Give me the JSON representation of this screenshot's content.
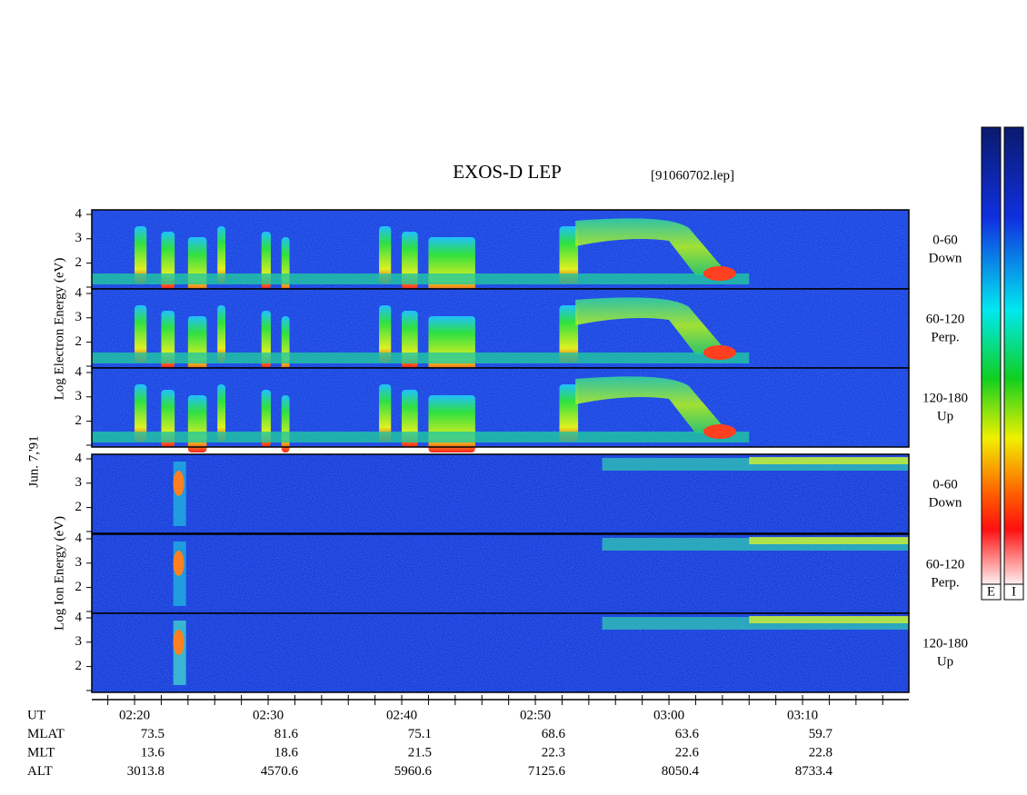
{
  "title": "EXOS-D LEP",
  "file": "[91060702.lep]",
  "date": "Jun. 7,'91",
  "electron_axis_label": "Log  Electron  Energy  (eV)",
  "ion_axis_label": "Log  Ion  Energy  (eV)",
  "energy_ticks": [
    2,
    3,
    4
  ],
  "panels": [
    {
      "pitch": "0-60",
      "direction": "Down"
    },
    {
      "pitch": "60-120",
      "direction": "Perp."
    },
    {
      "pitch": "120-180",
      "direction": "Up"
    },
    {
      "pitch": "0-60",
      "direction": "Down"
    },
    {
      "pitch": "60-120",
      "direction": "Perp."
    },
    {
      "pitch": "120-180",
      "direction": "Up"
    }
  ],
  "colorbar_labels": [
    "E",
    "I"
  ],
  "rows": [
    {
      "label": "UT",
      "values": [
        "02:20",
        "02:30",
        "02:40",
        "02:50",
        "03:00",
        "03:10"
      ]
    },
    {
      "label": "MLAT",
      "values": [
        "73.5",
        "81.6",
        "75.1",
        "68.6",
        "63.6",
        "59.7"
      ]
    },
    {
      "label": "MLT",
      "values": [
        "13.6",
        "18.6",
        "21.5",
        "22.3",
        "22.6",
        "22.8"
      ]
    },
    {
      "label": "ALT",
      "values": [
        "3013.8",
        "4570.6",
        "5960.6",
        "7125.6",
        "8050.4",
        "8733.4"
      ]
    }
  ]
}
